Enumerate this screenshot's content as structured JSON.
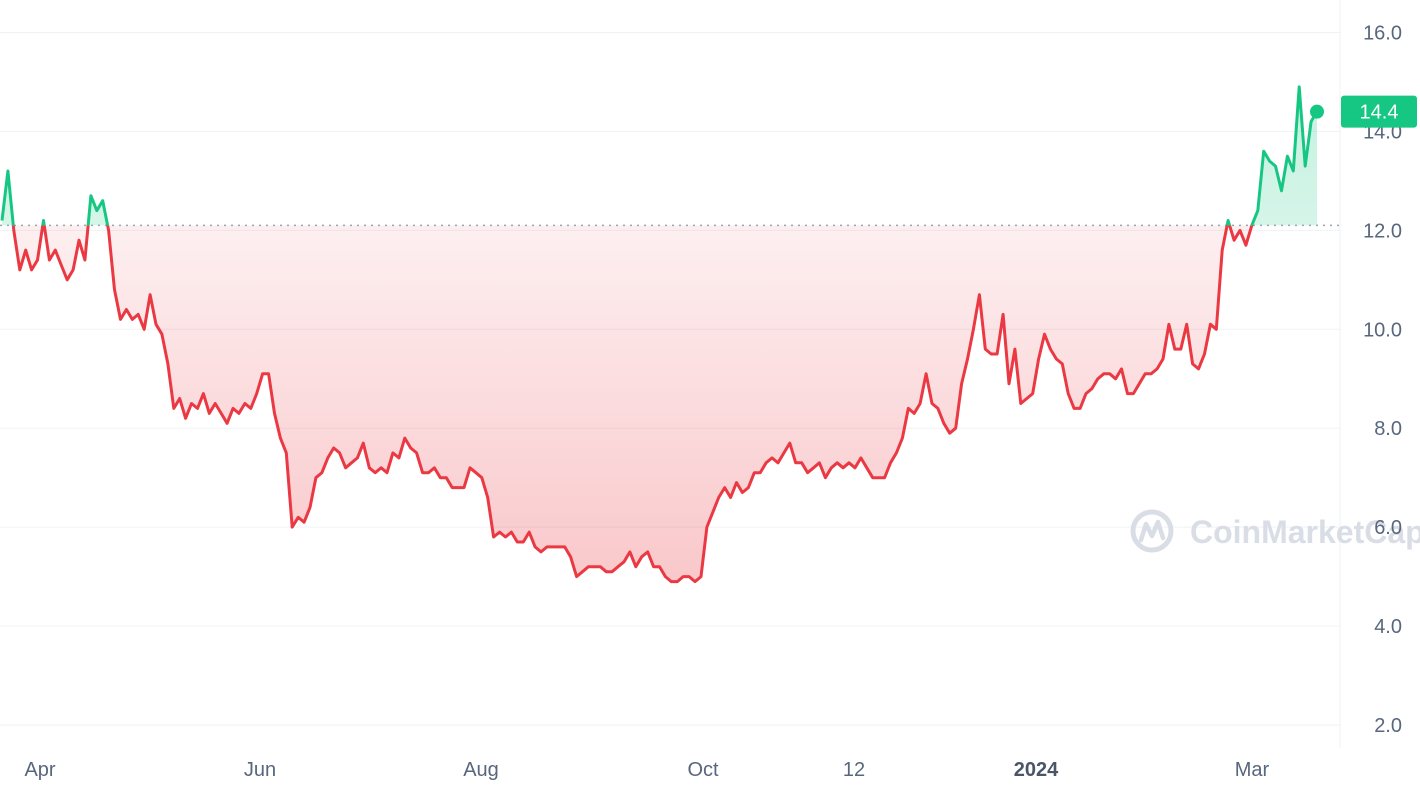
{
  "chart_data": {
    "type": "line",
    "y_axis": {
      "ticks": [
        "2.0",
        "4.0",
        "6.0",
        "8.0",
        "10.0",
        "12.0",
        "14.0",
        "16.0"
      ],
      "range": [
        2.0,
        16.0
      ]
    },
    "x_axis": {
      "labels": [
        {
          "text": "Apr",
          "bold": false
        },
        {
          "text": "Jun",
          "bold": false
        },
        {
          "text": "Aug",
          "bold": false
        },
        {
          "text": "Oct",
          "bold": false
        },
        {
          "text": "12",
          "bold": false
        },
        {
          "text": "2024",
          "bold": true
        },
        {
          "text": "Mar",
          "bold": false
        }
      ]
    },
    "baseline_value": 12.1,
    "current_price": {
      "value": 14.4,
      "label": "14.4"
    },
    "watermark": "CoinMarketCap",
    "colors": {
      "up": "#16c784",
      "down": "#ea3943",
      "grid": "#eff2f5",
      "volume": "#cfd6e4"
    },
    "series": [
      {
        "values": [
          12.2,
          13.2,
          12.0,
          11.2,
          11.6,
          11.2,
          11.4,
          12.2,
          11.4,
          11.6,
          11.3,
          11.0,
          11.2,
          11.8,
          11.4,
          12.7,
          12.4,
          12.6,
          12.0,
          10.8,
          10.2,
          10.4,
          10.2,
          10.3,
          10.0,
          10.7,
          10.1,
          9.9,
          9.3,
          8.4,
          8.6,
          8.2,
          8.5,
          8.4,
          8.7,
          8.3,
          8.5,
          8.3,
          8.1,
          8.4,
          8.3,
          8.5,
          8.4,
          8.7,
          9.1,
          9.1,
          8.3,
          7.8,
          7.5,
          6.0,
          6.2,
          6.1,
          6.4,
          7.0,
          7.1,
          7.4,
          7.6,
          7.5,
          7.2,
          7.3,
          7.4,
          7.7,
          7.2,
          7.1,
          7.2,
          7.1,
          7.5,
          7.4,
          7.8,
          7.6,
          7.5,
          7.1,
          7.1,
          7.2,
          7.0,
          7.0,
          6.8,
          6.8,
          6.8,
          7.2,
          7.1,
          7.0,
          6.6,
          5.8,
          5.9,
          5.8,
          5.9,
          5.7,
          5.7,
          5.9,
          5.6,
          5.5,
          5.6,
          5.6,
          5.6,
          5.6,
          5.4,
          5.0,
          5.1,
          5.2,
          5.2,
          5.2,
          5.1,
          5.1,
          5.2,
          5.3,
          5.5,
          5.2,
          5.4,
          5.5,
          5.2,
          5.2,
          5.0,
          4.9,
          4.9,
          5.0,
          5.0,
          4.9,
          5.0,
          6.0,
          6.3,
          6.6,
          6.8,
          6.6,
          6.9,
          6.7,
          6.8,
          7.1,
          7.1,
          7.3,
          7.4,
          7.3,
          7.5,
          7.7,
          7.3,
          7.3,
          7.1,
          7.2,
          7.3,
          7.0,
          7.2,
          7.3,
          7.2,
          7.3,
          7.2,
          7.4,
          7.2,
          7.0,
          7.0,
          7.0,
          7.3,
          7.5,
          7.8,
          8.4,
          8.3,
          8.5,
          9.1,
          8.5,
          8.4,
          8.1,
          7.9,
          8.0,
          8.9,
          9.4,
          10.0,
          10.7,
          9.6,
          9.5,
          9.5,
          10.3,
          8.9,
          9.6,
          8.5,
          8.6,
          8.7,
          9.4,
          9.9,
          9.6,
          9.4,
          9.3,
          8.7,
          8.4,
          8.4,
          8.7,
          8.8,
          9.0,
          9.1,
          9.1,
          9.0,
          9.2,
          8.7,
          8.7,
          8.9,
          9.1,
          9.1,
          9.2,
          9.4,
          10.1,
          9.6,
          9.6,
          10.1,
          9.3,
          9.2,
          9.5,
          10.1,
          10.0,
          11.6,
          12.2,
          11.8,
          12.0,
          11.7,
          12.1,
          12.4,
          13.6,
          13.4,
          13.3,
          12.8,
          13.5,
          13.2,
          14.9,
          13.3,
          14.2,
          14.4
        ]
      },
      {
        "values": []
      }
    ]
  }
}
